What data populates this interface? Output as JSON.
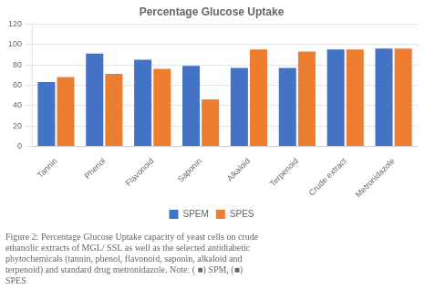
{
  "chart_data": {
    "type": "bar",
    "title": "Percentage Glucose Uptake",
    "categories": [
      "Tannin",
      "Phenol",
      "Flavonoid",
      "Saponin",
      "Alkaloid",
      "Terpenoid",
      "Crude extract",
      "Metronidazole"
    ],
    "series": [
      {
        "name": "SPEM",
        "color": "#4472C4",
        "values": [
          63,
          91,
          85,
          79,
          77,
          77,
          95,
          96
        ]
      },
      {
        "name": "SPES",
        "color": "#ED7D31",
        "values": [
          68,
          71,
          76,
          46,
          95,
          93,
          95,
          96
        ]
      }
    ],
    "ylim": [
      0,
      120
    ],
    "yticks": [
      0,
      20,
      40,
      60,
      80,
      100,
      120
    ],
    "grid": true,
    "legend": "bottom",
    "caption": "Figure 2: Percentage Glucose Uptake capacity of yeast cells on crude\nethanolic extracts of MGL/ SSL as well as the selected antidiabetic\nphytochemicals (tannin, phenol, flavonoid, saponin, alkaloid and\nterpenoid) and standard drug metronidazole. Note: ( ■) SPM, (■)\nSPES"
  }
}
